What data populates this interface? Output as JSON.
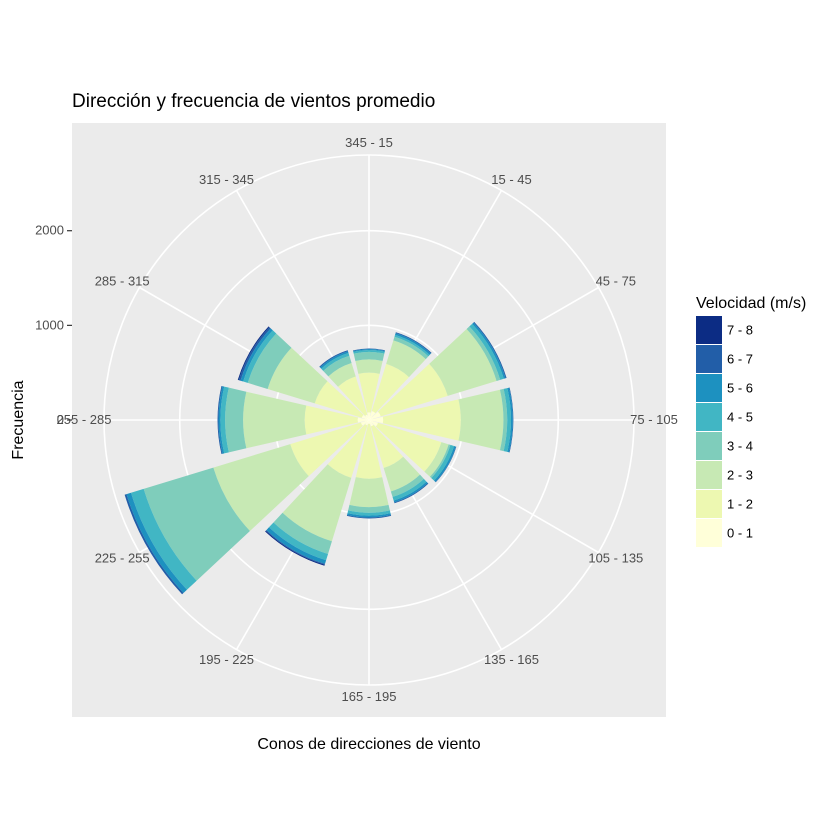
{
  "chart_data": {
    "type": "windrose",
    "title": "Dirección y frecuencia de vientos promedio",
    "xlabel": "Conos de direcciones de viento",
    "ylabel": "Frecuencia",
    "y_ticks": [
      0,
      1000,
      2000
    ],
    "rmax": 2800,
    "grid": true,
    "legend_position": "right",
    "legend": {
      "title": "Velocidad (m/s)",
      "items": [
        {
          "label": "7 - 8",
          "color": "#0c2c84"
        },
        {
          "label": "6 - 7",
          "color": "#225ea8"
        },
        {
          "label": "5 - 6",
          "color": "#1d91c0"
        },
        {
          "label": "4 - 5",
          "color": "#41b6c4"
        },
        {
          "label": "3 - 4",
          "color": "#7fcdbb"
        },
        {
          "label": "2 - 3",
          "color": "#c7e9b4"
        },
        {
          "label": "1 - 2",
          "color": "#edf8b1"
        },
        {
          "label": "0 - 1",
          "color": "#ffffd9"
        }
      ]
    },
    "categories": [
      "345 - 15",
      "15 - 45",
      "45 - 75",
      "75 - 105",
      "105 - 135",
      "135 - 165",
      "165 - 195",
      "195 - 225",
      "225 - 255",
      "255 - 285",
      "285 - 315",
      "315 - 345"
    ],
    "series": [
      {
        "name": "0 - 1",
        "values": [
          80,
          100,
          130,
          150,
          100,
          70,
          40,
          60,
          90,
          120,
          80,
          60
        ]
      },
      {
        "name": "1 - 2",
        "values": [
          420,
          520,
          740,
          820,
          700,
          460,
          580,
          580,
          780,
          560,
          520,
          420
        ]
      },
      {
        "name": "2 - 3",
        "values": [
          140,
          260,
          540,
          450,
          80,
          260,
          300,
          700,
          850,
          650,
          520,
          150
        ]
      },
      {
        "name": "3 - 4",
        "values": [
          80,
          40,
          40,
          40,
          20,
          60,
          60,
          140,
          770,
          190,
          220,
          80
        ]
      },
      {
        "name": "4 - 5",
        "values": [
          20,
          20,
          40,
          40,
          40,
          40,
          30,
          70,
          140,
          50,
          50,
          30
        ]
      },
      {
        "name": "5 - 6",
        "values": [
          10,
          20,
          20,
          20,
          20,
          20,
          20,
          40,
          50,
          20,
          30,
          20
        ]
      },
      {
        "name": "6 - 7",
        "values": [
          5,
          10,
          10,
          5,
          5,
          10,
          10,
          10,
          20,
          10,
          20,
          10
        ]
      },
      {
        "name": "7 - 8",
        "values": [
          0,
          0,
          0,
          0,
          0,
          0,
          0,
          10,
          0,
          0,
          10,
          0
        ]
      }
    ]
  }
}
